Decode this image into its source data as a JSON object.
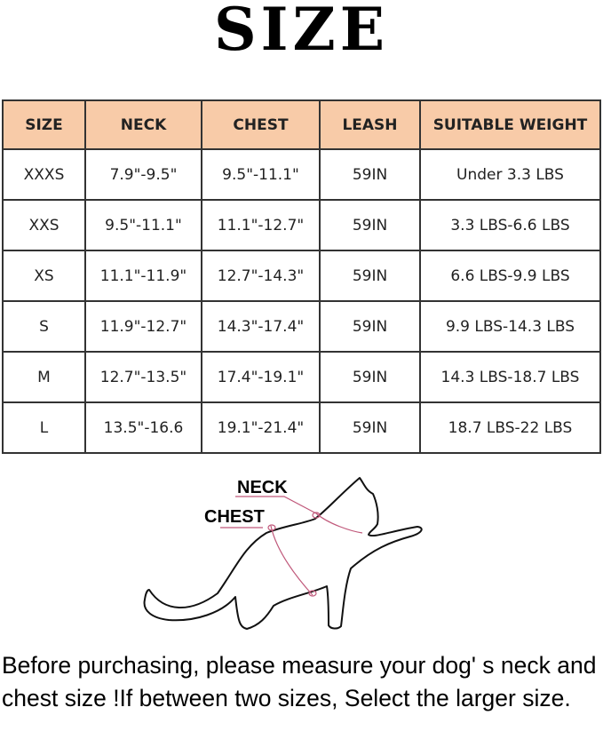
{
  "title": "SIZE",
  "table": {
    "headers": [
      "SIZE",
      "NECK",
      "CHEST",
      "LEASH",
      "SUITABLE WEIGHT"
    ],
    "rows": [
      [
        "XXXS",
        "7.9\"-9.5\"",
        "9.5\"-11.1\"",
        "59IN",
        "Under 3.3 LBS"
      ],
      [
        "XXS",
        "9.5\"-11.1\"",
        "11.1\"-12.7\"",
        "59IN",
        "3.3 LBS-6.6 LBS"
      ],
      [
        "XS",
        "11.1\"-11.9\"",
        "12.7\"-14.3\"",
        "59IN",
        "6.6 LBS-9.9 LBS"
      ],
      [
        "S",
        "11.9\"-12.7\"",
        "14.3\"-17.4\"",
        "59IN",
        "9.9 LBS-14.3 LBS"
      ],
      [
        "M",
        "12.7\"-13.5\"",
        "17.4\"-19.1\"",
        "59IN",
        "14.3 LBS-18.7 LBS"
      ],
      [
        "L",
        "13.5\"-16.6",
        "19.1\"-21.4\"",
        "59IN",
        "18.7 LBS-22 LBS"
      ]
    ],
    "header_color": "#f8cba8"
  },
  "diagram": {
    "neck_label": "NECK",
    "chest_label": "CHEST",
    "line_color": "#c0587a"
  },
  "note": "Before purchasing, please measure your dog' s neck and chest size !If between two sizes, Select the larger size."
}
